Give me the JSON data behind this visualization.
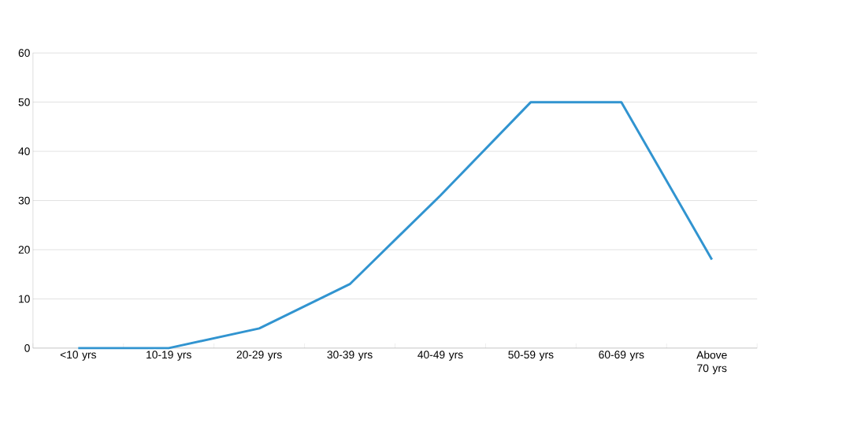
{
  "chart_data": {
    "type": "line",
    "categories": [
      "<10 yrs",
      "10-19 yrs",
      "20-29 yrs",
      "30-39 yrs",
      "40-49 yrs",
      "50-59 yrs",
      "60-69 yrs",
      "Above 70 yrs"
    ],
    "series": [
      {
        "color": "#3194d0",
        "values": [
          0,
          0,
          4,
          13,
          31,
          50,
          50,
          18
        ]
      }
    ],
    "ylim": [
      0,
      60
    ],
    "yticks": [
      0,
      10,
      20,
      30,
      40,
      50,
      60
    ],
    "grid": "y",
    "marker": "none",
    "line_style": "solid"
  }
}
